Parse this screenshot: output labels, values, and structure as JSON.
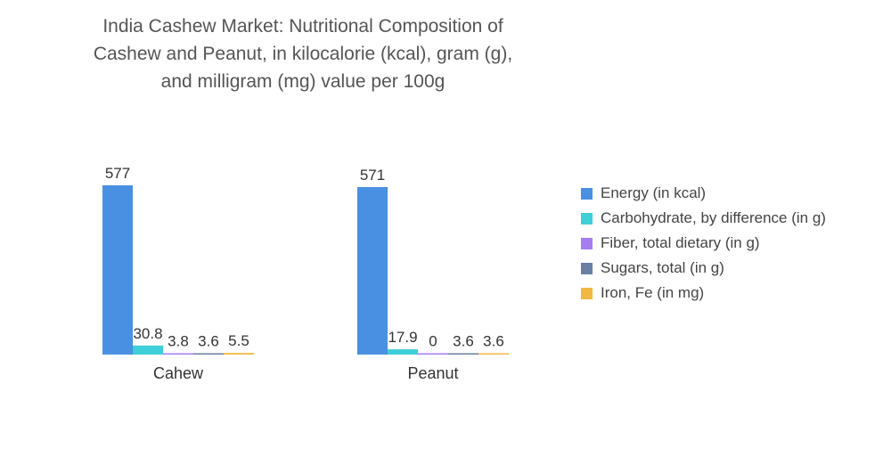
{
  "title_lines": [
    "India Cashew Market: Nutritional Composition of",
    "Cashew and Peanut, in kilocalorie (kcal), gram (g),",
    "and milligram (mg) value per 100g"
  ],
  "colors": {
    "energy": "#4a90e2",
    "carbohydrate": "#3ecfd8",
    "fiber": "#a77ef2",
    "sugars": "#6a7fa3",
    "iron": "#f0b942",
    "axis": "#cccccc"
  },
  "chart_data": {
    "type": "bar",
    "title": "India Cashew Market: Nutritional Composition of Cashew and Peanut, in kilocalorie (kcal), gram (g), and milligram (mg) value per 100g",
    "categories": [
      "Cahew",
      "Peanut"
    ],
    "series": [
      {
        "name": "Energy (in kcal)",
        "values": [
          577,
          571
        ],
        "labels": [
          "577",
          "571"
        ],
        "color_key": "energy"
      },
      {
        "name": "Carbohydrate, by difference (in g)",
        "values": [
          30.8,
          17.9
        ],
        "labels": [
          "30.8",
          "17.9"
        ],
        "color_key": "carbohydrate"
      },
      {
        "name": "Fiber, total dietary (in g)",
        "values": [
          3.8,
          0
        ],
        "labels": [
          "3.8",
          "0"
        ],
        "color_key": "fiber"
      },
      {
        "name": "Sugars, total (in g)",
        "values": [
          3.6,
          3.6
        ],
        "labels": [
          "3.6",
          "3.6"
        ],
        "color_key": "sugars"
      },
      {
        "name": "Iron, Fe (in mg)",
        "values": [
          5.5,
          3.6
        ],
        "labels": [
          "5.5",
          "3.6"
        ],
        "color_key": "iron"
      }
    ],
    "xlabel": "",
    "ylabel": "",
    "ylim": [
      0,
      577
    ],
    "grid": false,
    "legend_position": "right"
  }
}
